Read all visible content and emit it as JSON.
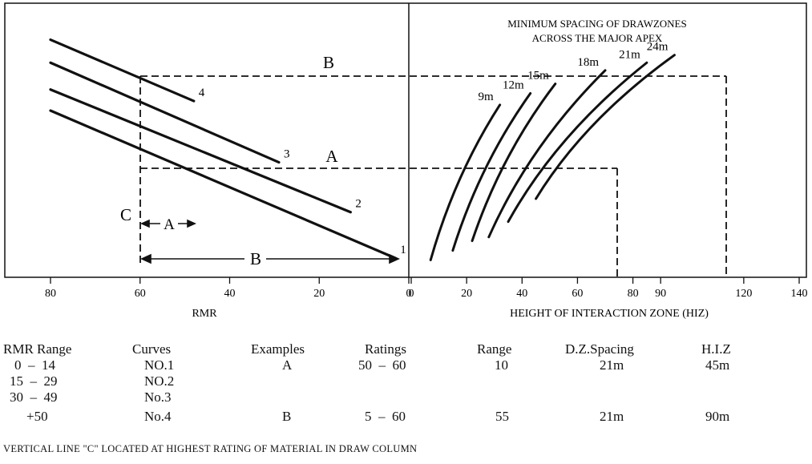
{
  "chart_data": {
    "type": "line",
    "left_panel": {
      "xlabel": "RMR",
      "xticks": [
        "80",
        "60",
        "40",
        "20",
        "0"
      ],
      "xlim": [
        80,
        0
      ],
      "curves": [
        {
          "name": "1",
          "points": [
            [
              80,
              8.7
            ],
            [
              3,
              1.0
            ]
          ]
        },
        {
          "name": "2",
          "points": [
            [
              80,
              9.8
            ],
            [
              13,
              3.4
            ]
          ]
        },
        {
          "name": "3",
          "points": [
            [
              80,
              11.2
            ],
            [
              29,
              6.0
            ]
          ]
        },
        {
          "name": "4",
          "points": [
            [
              80,
              12.4
            ],
            [
              48,
              9.2
            ]
          ]
        }
      ],
      "labels": {
        "B_top": "B",
        "A_mid": "A",
        "C_vertical": "C",
        "A_arrow": "A",
        "B_arrow": "B"
      }
    },
    "right_panel": {
      "title_line1": "MINIMUM SPACING OF DRAWZONES",
      "title_line2": "ACROSS THE MAJOR APEX",
      "xlabel": "HEIGHT OF INTERACTION ZONE (HIZ)",
      "xticks": [
        "0",
        "20",
        "40",
        "60",
        "80",
        "90",
        "120",
        "140"
      ],
      "xlim": [
        0,
        140
      ],
      "curves": [
        {
          "name": "9m",
          "points": [
            [
              7,
              0.9
            ],
            [
              32,
              9.0
            ]
          ]
        },
        {
          "name": "12m",
          "points": [
            [
              15,
              1.4
            ],
            [
              43,
              9.6
            ]
          ]
        },
        {
          "name": "15m",
          "points": [
            [
              22,
              1.9
            ],
            [
              52,
              10.1
            ]
          ]
        },
        {
          "name": "18m",
          "points": [
            [
              28,
              2.1
            ],
            [
              70,
              10.8
            ]
          ]
        },
        {
          "name": "21m",
          "points": [
            [
              35,
              2.9
            ],
            [
              85,
              11.2
            ]
          ]
        },
        {
          "name": "24m",
          "points": [
            [
              45,
              4.1
            ],
            [
              95,
              11.6
            ]
          ]
        }
      ]
    },
    "guides": {
      "A": {
        "rmr": 60,
        "hiz": 45
      },
      "B": {
        "rmr": 60,
        "hiz": 90
      }
    }
  },
  "table": {
    "headers": [
      "RMR Range",
      "Curves",
      "Examples",
      "Ratings",
      "Range",
      "D.Z.Spacing",
      "H.I.Z"
    ],
    "rows": [
      [
        "0  –  14",
        "NO.1",
        "A",
        "50  –  60",
        "10",
        "21m",
        "45m"
      ],
      [
        "15  –  29",
        "NO.2",
        "",
        "",
        "",
        "",
        ""
      ],
      [
        "30  –  49",
        "No.3",
        "",
        "",
        "",
        "",
        ""
      ],
      [
        "+50",
        "No.4",
        "B",
        "5  –  60",
        "55",
        "21m",
        "90m"
      ]
    ]
  },
  "footnote": "VERTICAL LINE \"C\" LOCATED AT HIGHEST RATING OF MATERIAL IN DRAW COLUMN"
}
